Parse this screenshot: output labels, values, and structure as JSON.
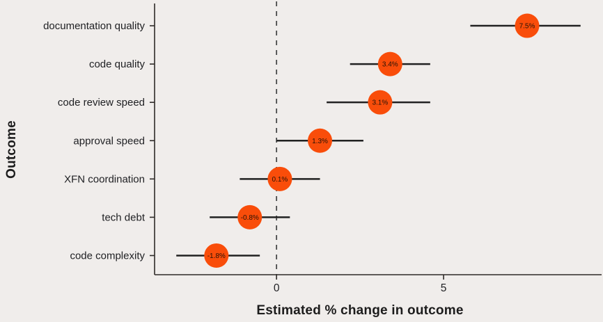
{
  "chart_data": {
    "type": "scatter",
    "subtype": "dot-plot-with-confidence-intervals",
    "title": "",
    "xlabel": "Estimated % change in outcome",
    "ylabel": "Outcome",
    "xlim": [
      -3.65,
      9.73
    ],
    "x_ticks": [
      {
        "value": 0,
        "label": "0"
      },
      {
        "value": 5,
        "label": "5"
      }
    ],
    "zero_reference_line": 0,
    "grid": false,
    "legend": null,
    "categories": [
      "documentation quality",
      "code quality",
      "code review speed",
      "approval speed",
      "XFN coordination",
      "tech debt",
      "code complexity"
    ],
    "points": [
      {
        "category": "documentation quality",
        "value": 7.5,
        "label": "7.5%",
        "ci_low": 5.8,
        "ci_high": 9.1
      },
      {
        "category": "code quality",
        "value": 3.4,
        "label": "3.4%",
        "ci_low": 2.2,
        "ci_high": 4.6
      },
      {
        "category": "code review speed",
        "value": 3.1,
        "label": "3.1%",
        "ci_low": 1.5,
        "ci_high": 4.6
      },
      {
        "category": "approval speed",
        "value": 1.3,
        "label": "1.3%",
        "ci_low": 0.0,
        "ci_high": 2.6
      },
      {
        "category": "XFN coordination",
        "value": 0.1,
        "label": "0.1%",
        "ci_low": -1.1,
        "ci_high": 1.3
      },
      {
        "category": "tech debt",
        "value": -0.8,
        "label": "-0.8%",
        "ci_low": -2.0,
        "ci_high": 0.4
      },
      {
        "category": "code complexity",
        "value": -1.8,
        "label": "-1.8%",
        "ci_low": -3.0,
        "ci_high": -0.5
      }
    ],
    "colors": {
      "background": "#f0edeb",
      "dot": "#f94d0a",
      "error_bar": "#212121",
      "axis": "#2e2a28",
      "zero_line": "#4a4a4a",
      "text": "#202124",
      "dot_label_text": "#241207"
    }
  }
}
